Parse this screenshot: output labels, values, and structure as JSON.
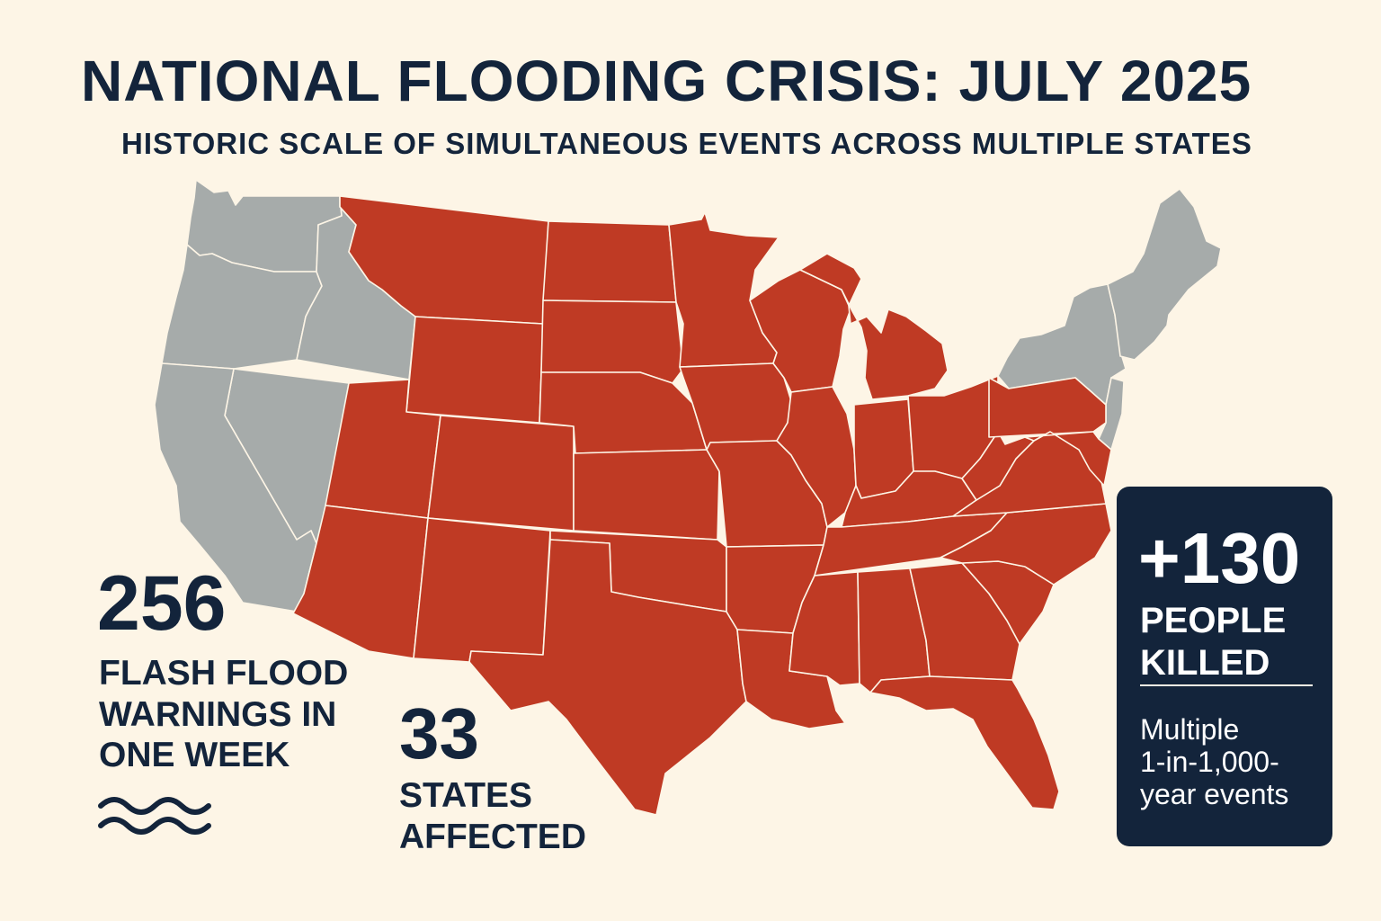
{
  "title": "NATIONAL FLOODING CRISIS: JULY 2025",
  "subtitle": "HISTORIC SCALE OF SIMULTANEOUS EVENTS ACROSS MULTIPLE STATES",
  "colors": {
    "background": "#fdf5e6",
    "affected": "#bf3a24",
    "unaffected": "#a6abaa",
    "text": "#13243b",
    "panel": "#13243b"
  },
  "legend_meaning": {
    "affected_states": [
      "WA-no",
      "OR-no",
      "CA-no",
      "NV-no",
      "ID-no"
    ]
  },
  "stats": {
    "warnings": {
      "value": "256",
      "label": [
        "FLASH FLOOD",
        "WARNINGS IN",
        "ONE WEEK"
      ]
    },
    "states": {
      "value": "33",
      "label": [
        "STATES",
        "AFFECTED"
      ]
    },
    "deaths": {
      "value": "+130",
      "label": [
        "PEOPLE",
        "KILLED"
      ],
      "note": [
        "Multiple",
        "1-in-1,000-",
        "year events"
      ]
    }
  },
  "icons": {
    "waves": "waves-icon"
  }
}
